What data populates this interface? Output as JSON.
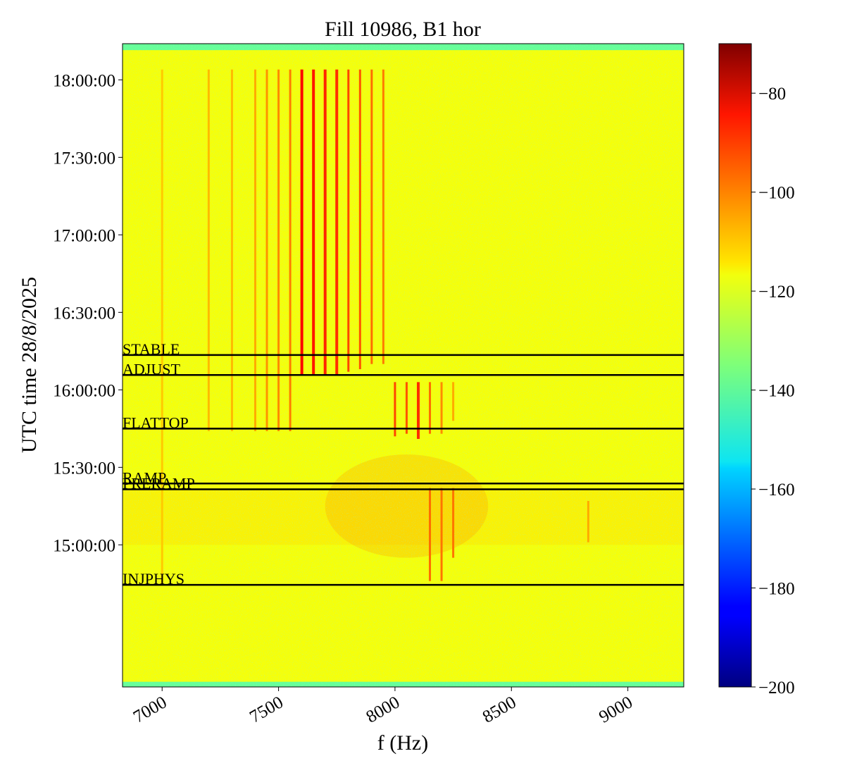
{
  "chart_data": {
    "type": "heatmap",
    "title": "Fill 10986, B1 hor",
    "xlabel": "f (Hz)",
    "ylabel": "UTC time 28/8/2025",
    "xlim": [
      6830,
      9240
    ],
    "ylim_minutes_utc": [
      845,
      1094
    ],
    "x_ticks": [
      {
        "value": 7000,
        "label": "7000"
      },
      {
        "value": 7500,
        "label": "7500"
      },
      {
        "value": 8000,
        "label": "8000"
      },
      {
        "value": 8500,
        "label": "8500"
      },
      {
        "value": 9000,
        "label": "9000"
      }
    ],
    "y_ticks": [
      {
        "time": "15:00:00",
        "label": "15:00:00"
      },
      {
        "time": "15:30:00",
        "label": "15:30:00"
      },
      {
        "time": "16:00:00",
        "label": "16:00:00"
      },
      {
        "time": "16:30:00",
        "label": "16:30:00"
      },
      {
        "time": "17:00:00",
        "label": "17:00:00"
      },
      {
        "time": "17:30:00",
        "label": "17:30:00"
      },
      {
        "time": "18:00:00",
        "label": "18:00:00"
      }
    ],
    "colorbar": {
      "colormap": "jet",
      "range": [
        -200,
        -70
      ],
      "ticks": [
        {
          "value": -80,
          "label": "−80"
        },
        {
          "value": -100,
          "label": "−100"
        },
        {
          "value": -120,
          "label": "−120"
        },
        {
          "value": -140,
          "label": "−140"
        },
        {
          "value": -160,
          "label": "−160"
        },
        {
          "value": -180,
          "label": "−180"
        },
        {
          "value": -200,
          "label": "−200"
        }
      ]
    },
    "phases": [
      {
        "label": "INJPHYS",
        "time": "14:44:30"
      },
      {
        "label": "PRERAMP",
        "time": "15:21:30"
      },
      {
        "label": "RAMP",
        "time": "15:23:45"
      },
      {
        "label": "FLATTOP",
        "time": "15:45:00"
      },
      {
        "label": "ADJUST",
        "time": "16:05:45"
      },
      {
        "label": "STABLE",
        "time": "16:13:30"
      }
    ],
    "background_level": -120,
    "spectral_lines": [
      {
        "f": 7000,
        "t_start": "14:45:00",
        "t_end": "18:04:00",
        "level": -112
      },
      {
        "f": 7200,
        "t_start": "15:44:00",
        "t_end": "18:04:00",
        "level": -110
      },
      {
        "f": 7300,
        "t_start": "15:44:00",
        "t_end": "18:04:00",
        "level": -110
      },
      {
        "f": 7400,
        "t_start": "15:44:00",
        "t_end": "18:04:00",
        "level": -108
      },
      {
        "f": 7450,
        "t_start": "15:44:00",
        "t_end": "18:04:00",
        "level": -105
      },
      {
        "f": 7500,
        "t_start": "15:44:00",
        "t_end": "18:04:00",
        "level": -104
      },
      {
        "f": 7550,
        "t_start": "15:44:00",
        "t_end": "18:04:00",
        "level": -102
      },
      {
        "f": 7600,
        "t_start": "16:06:00",
        "t_end": "18:04:00",
        "level": -86
      },
      {
        "f": 7650,
        "t_start": "16:06:00",
        "t_end": "18:04:00",
        "level": -89
      },
      {
        "f": 7700,
        "t_start": "16:06:00",
        "t_end": "18:04:00",
        "level": -91
      },
      {
        "f": 7750,
        "t_start": "16:06:00",
        "t_end": "18:04:00",
        "level": -92
      },
      {
        "f": 7800,
        "t_start": "16:07:00",
        "t_end": "18:04:00",
        "level": -95
      },
      {
        "f": 7850,
        "t_start": "16:08:00",
        "t_end": "18:04:00",
        "level": -97
      },
      {
        "f": 7900,
        "t_start": "16:10:00",
        "t_end": "18:04:00",
        "level": -100
      },
      {
        "f": 7950,
        "t_start": "16:10:00",
        "t_end": "18:04:00",
        "level": -102
      },
      {
        "f": 8000,
        "t_start": "15:42:00",
        "t_end": "16:03:00",
        "level": -95
      },
      {
        "f": 8050,
        "t_start": "15:43:00",
        "t_end": "16:03:00",
        "level": -97
      },
      {
        "f": 8100,
        "t_start": "15:41:00",
        "t_end": "16:03:00",
        "level": -92
      },
      {
        "f": 8150,
        "t_start": "15:43:00",
        "t_end": "16:03:00",
        "level": -100
      },
      {
        "f": 8200,
        "t_start": "15:43:00",
        "t_end": "16:03:00",
        "level": -104
      },
      {
        "f": 8250,
        "t_start": "15:48:00",
        "t_end": "16:03:00",
        "level": -108
      },
      {
        "f": 8150,
        "t_start": "14:46:00",
        "t_end": "15:22:00",
        "level": -100
      },
      {
        "f": 8200,
        "t_start": "14:46:00",
        "t_end": "15:22:00",
        "level": -101
      },
      {
        "f": 8250,
        "t_start": "14:55:00",
        "t_end": "15:22:00",
        "level": -101
      },
      {
        "f": 8830,
        "t_start": "15:01:00",
        "t_end": "15:17:00",
        "level": -108
      }
    ]
  }
}
